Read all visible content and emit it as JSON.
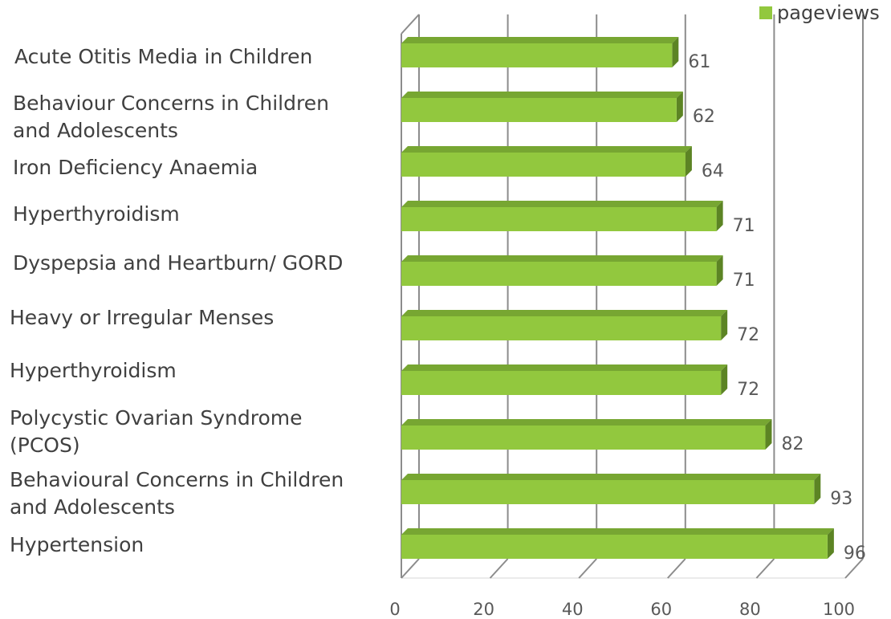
{
  "chart_data": {
    "type": "bar",
    "orientation": "horizontal",
    "categories": [
      "Acute Otitis Media in Children",
      "Behaviour Concerns in Children\n and Adolescents",
      "Iron Deficiency Anaemia",
      "Hyperthyroidism",
      "Dyspepsia and Heartburn/ GORD",
      "Heavy or Irregular Menses",
      "Hyperthyroidism",
      "Polycystic Ovarian Syndrome\n(PCOS)",
      "Behavioural Concerns in Children\nand Adolescents",
      "Hypertension"
    ],
    "series": [
      {
        "name": "pageviews",
        "values": [
          61,
          62,
          64,
          71,
          71,
          72,
          72,
          82,
          93,
          96
        ]
      }
    ],
    "data_labels": [
      "61",
      "62",
      "64",
      "71",
      "71",
      "72",
      "72",
      "82",
      "93",
      "96"
    ],
    "x_ticks": [
      0,
      20,
      40,
      60,
      80,
      100
    ],
    "xlim": [
      0,
      100
    ],
    "grid": true,
    "legend_position": "top-right",
    "colors": {
      "bar_front": "#92c83e",
      "bar_top": "#77a632",
      "bar_side": "#5c8424",
      "grid": "#8c8c8c"
    }
  }
}
